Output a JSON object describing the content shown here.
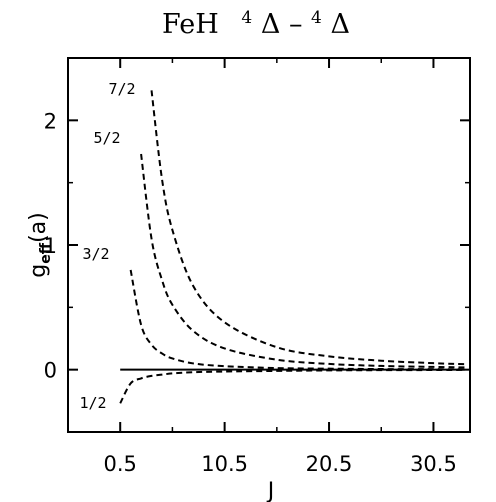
{
  "chart_data": {
    "type": "line",
    "title": {
      "base": "FeH",
      "sup1": "4",
      "term1": "Δ",
      "dash": "–",
      "sup2": "4",
      "term2": "Δ"
    },
    "xlabel": "J",
    "ylabel": {
      "main": "g",
      "sub": "eff",
      "tail": "(a)"
    },
    "xlim": [
      -4.5,
      34.0
    ],
    "ylim": [
      -0.5,
      2.5
    ],
    "xticks": [
      0.5,
      10.5,
      20.5,
      30.5
    ],
    "xtick_labels": [
      "0.5",
      "10.5",
      "20.5",
      "30.5"
    ],
    "yticks": [
      0,
      1,
      2
    ],
    "ytick_labels": [
      "0",
      "1",
      "2"
    ],
    "reference_line": {
      "y": 0,
      "x_start": 0.5,
      "x_end": 33.5
    },
    "series": [
      {
        "name": "1/2",
        "omega": 0.5,
        "x_start": 0.5,
        "x_end": 33.5
      },
      {
        "name": "3/2",
        "omega": 1.5,
        "x_start": 1.5,
        "x_end": 33.5
      },
      {
        "name": "5/2",
        "omega": 2.5,
        "x_start": 2.5,
        "x_end": 33.5
      },
      {
        "name": "7/2",
        "omega": 3.5,
        "x_start": 3.5,
        "x_end": 33.5
      }
    ],
    "points": {
      "1/2": {
        "x": [
          0.5,
          1.5,
          2.5,
          3.5,
          4.5,
          5.5,
          7.5,
          10.5,
          15.5,
          20.5,
          25.5,
          30.5,
          33.5
        ],
        "y": [
          -0.27,
          -0.11,
          -0.07,
          -0.05,
          -0.04,
          -0.03,
          -0.02,
          -0.015,
          -0.01,
          -0.006,
          -0.004,
          -0.003,
          -0.002
        ]
      },
      "3/2": {
        "x": [
          1.5,
          2.5,
          3.5,
          4.5,
          5.5,
          7.5,
          10.5,
          15.5,
          20.5,
          25.5,
          30.5,
          33.5
        ],
        "y": [
          0.8,
          0.36,
          0.2,
          0.13,
          0.09,
          0.05,
          0.028,
          0.013,
          0.008,
          0.005,
          0.004,
          0.003
        ]
      },
      "5/2": {
        "x": [
          2.5,
          3.5,
          4.5,
          5.5,
          7.5,
          10.5,
          15.5,
          20.5,
          25.5,
          30.5,
          33.5
        ],
        "y": [
          1.73,
          1.05,
          0.72,
          0.52,
          0.31,
          0.17,
          0.08,
          0.046,
          0.03,
          0.022,
          0.018
        ]
      },
      "7/2": {
        "x": [
          3.5,
          4.5,
          5.5,
          7.5,
          10.5,
          15.5,
          20.5,
          25.5,
          30.5,
          33.5
        ],
        "y": [
          2.24,
          1.53,
          1.12,
          0.67,
          0.38,
          0.18,
          0.107,
          0.072,
          0.052,
          0.044
        ]
      }
    },
    "grid": false,
    "legend": "none"
  }
}
